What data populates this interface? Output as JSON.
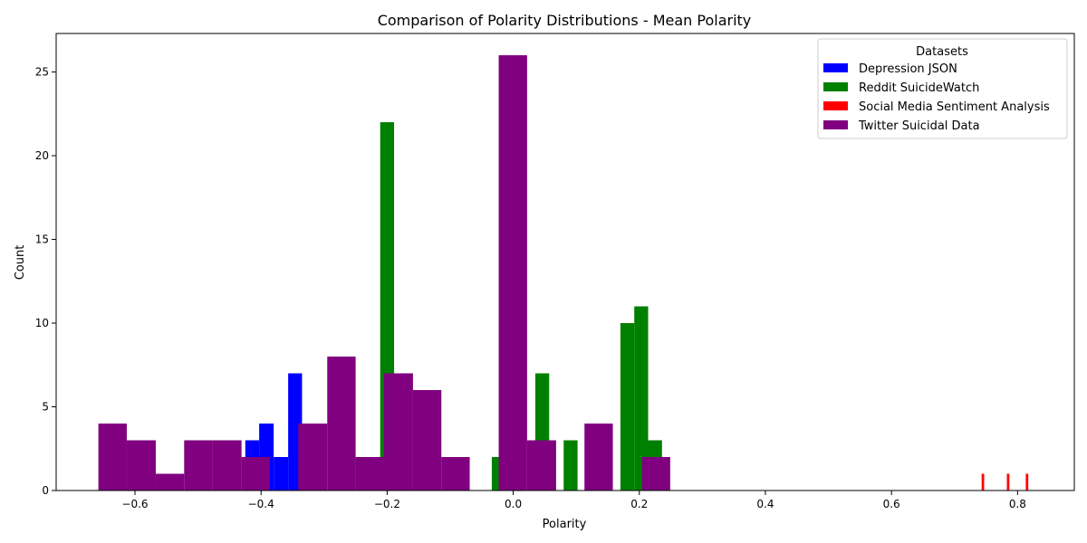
{
  "chart_data": {
    "type": "bar",
    "title": "Comparison of Polarity Distributions - Mean Polarity",
    "xlabel": "Polarity",
    "ylabel": "Count",
    "xlim": [
      -0.725,
      0.89
    ],
    "ylim": [
      0,
      27.3
    ],
    "xticks": [
      -0.6,
      -0.4,
      -0.2,
      0.0,
      0.2,
      0.4,
      0.6,
      0.8
    ],
    "xtick_labels": [
      "−0.6",
      "−0.4",
      "−0.2",
      "0.0",
      "0.2",
      "0.4",
      "0.6",
      "0.8"
    ],
    "yticks": [
      0,
      5,
      10,
      15,
      20,
      25
    ],
    "ytick_labels": [
      "0",
      "5",
      "10",
      "15",
      "20",
      "25"
    ],
    "grid": false,
    "legend": {
      "title": "Datasets",
      "position": "top-right"
    },
    "series": [
      {
        "name": "Depression JSON",
        "color": "#0000ff",
        "bins": [
          {
            "x0": -0.425,
            "x1": -0.403,
            "count": 3
          },
          {
            "x0": -0.403,
            "x1": -0.38,
            "count": 4
          },
          {
            "x0": -0.38,
            "x1": -0.357,
            "count": 2
          },
          {
            "x0": -0.357,
            "x1": -0.335,
            "count": 7
          }
        ]
      },
      {
        "name": "Reddit SuicideWatch",
        "color": "#008000",
        "bins": [
          {
            "x0": -0.211,
            "x1": -0.189,
            "count": 22
          },
          {
            "x0": -0.034,
            "x1": -0.012,
            "count": 2
          },
          {
            "x0": 0.035,
            "x1": 0.057,
            "count": 7
          },
          {
            "x0": 0.08,
            "x1": 0.102,
            "count": 3
          },
          {
            "x0": 0.17,
            "x1": 0.192,
            "count": 10
          },
          {
            "x0": 0.192,
            "x1": 0.214,
            "count": 11
          },
          {
            "x0": 0.214,
            "x1": 0.236,
            "count": 3
          }
        ]
      },
      {
        "name": "Social Media Sentiment Analysis",
        "color": "#ff0000",
        "bins": [
          {
            "x0": 0.743,
            "x1": 0.747,
            "count": 1
          },
          {
            "x0": 0.783,
            "x1": 0.787,
            "count": 1
          },
          {
            "x0": 0.813,
            "x1": 0.817,
            "count": 1
          }
        ]
      },
      {
        "name": "Twitter Suicidal Data",
        "color": "#800080",
        "bins": [
          {
            "x0": -0.658,
            "x1": -0.613,
            "count": 4
          },
          {
            "x0": -0.613,
            "x1": -0.567,
            "count": 3
          },
          {
            "x0": -0.567,
            "x1": -0.522,
            "count": 1
          },
          {
            "x0": -0.522,
            "x1": -0.477,
            "count": 3
          },
          {
            "x0": -0.477,
            "x1": -0.431,
            "count": 3
          },
          {
            "x0": -0.431,
            "x1": -0.386,
            "count": 2
          },
          {
            "x0": -0.341,
            "x1": -0.295,
            "count": 4
          },
          {
            "x0": -0.295,
            "x1": -0.25,
            "count": 8
          },
          {
            "x0": -0.25,
            "x1": -0.205,
            "count": 2
          },
          {
            "x0": -0.205,
            "x1": -0.159,
            "count": 7
          },
          {
            "x0": -0.159,
            "x1": -0.114,
            "count": 6
          },
          {
            "x0": -0.114,
            "x1": -0.069,
            "count": 2
          },
          {
            "x0": -0.023,
            "x1": 0.022,
            "count": 26
          },
          {
            "x0": 0.022,
            "x1": 0.068,
            "count": 3
          },
          {
            "x0": 0.113,
            "x1": 0.158,
            "count": 4
          },
          {
            "x0": 0.204,
            "x1": 0.249,
            "count": 2
          }
        ]
      }
    ]
  }
}
